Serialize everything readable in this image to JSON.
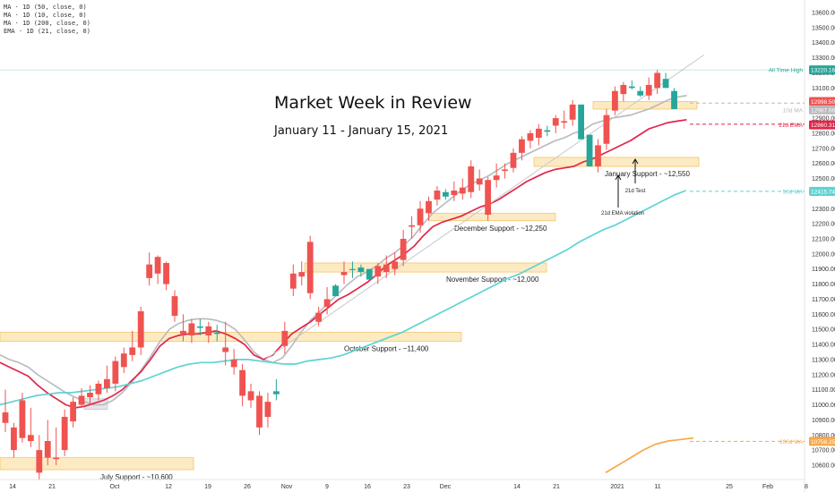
{
  "title": "Market Week in Review",
  "subtitle": "January 11 - January 15, 2021",
  "legend": [
    "MA · 1D (50, close, 0)",
    "MA · 1D (10, close, 0)",
    "MA · 1D (200, close, 0)",
    "EMA · 1D (21, close, 0)"
  ],
  "colors": {
    "up": "#26a69a",
    "down": "#ef5350",
    "ema21": "#e0264a",
    "ma10": "#b9b9bd",
    "ma50": "#5fd3d3",
    "ma200": "#f7a84a",
    "support_fill": "#fbe3ad",
    "support_stroke": "#f4c56a",
    "ath": "#26a69a"
  },
  "chart_data": {
    "type": "candlestick",
    "ylim": [
      10550,
      13650
    ],
    "y_ticks": [
      10600,
      10700,
      10800,
      10900,
      11000,
      11100,
      11200,
      11300,
      11400,
      11500,
      11600,
      11700,
      11800,
      11900,
      12000,
      12100,
      12200,
      12300,
      12400,
      12500,
      12600,
      12700,
      12800,
      12900,
      13000,
      13100,
      13200,
      13300,
      13400,
      13500,
      13600
    ],
    "x_ticks": [
      "14",
      "21",
      "Oct",
      "12",
      "19",
      "26",
      "Nov",
      "9",
      "16",
      "23",
      "Dec",
      "14",
      "21",
      "2021",
      "11",
      "25",
      "Feb",
      "8"
    ],
    "candles": [
      [
        10950,
        11100,
        10880,
        10820
      ],
      [
        10850,
        10880,
        10700,
        10650
      ],
      [
        11030,
        11080,
        10780,
        10750
      ],
      [
        10800,
        10980,
        10760,
        10720
      ],
      [
        10700,
        10800,
        10550,
        10500
      ],
      [
        10760,
        10900,
        10650,
        10600
      ],
      [
        10650,
        10850,
        10640,
        10600
      ],
      [
        10920,
        10970,
        10700,
        10660
      ],
      [
        11020,
        11050,
        10890,
        10850
      ],
      [
        11060,
        11110,
        11000,
        10980
      ],
      [
        11080,
        11130,
        11050,
        11000
      ],
      [
        11140,
        11160,
        11070,
        11030
      ],
      [
        11170,
        11260,
        11110,
        11080
      ],
      [
        11290,
        11320,
        11140,
        11090
      ],
      [
        11340,
        11380,
        11250,
        11210
      ],
      [
        11380,
        11490,
        11330,
        11290
      ],
      [
        11620,
        11650,
        11380,
        11330
      ],
      [
        11930,
        12010,
        11840,
        11790
      ],
      [
        11980,
        11990,
        11870,
        11800
      ],
      [
        11940,
        11950,
        11800,
        11760
      ],
      [
        11720,
        11760,
        11590,
        11550
      ],
      [
        11490,
        11600,
        11470,
        11420
      ],
      [
        11540,
        11570,
        11460,
        11410
      ],
      [
        11510,
        11570,
        11520,
        11460
      ],
      [
        11520,
        11550,
        11460,
        11410
      ],
      [
        11470,
        11530,
        11480,
        11420
      ],
      [
        11380,
        11550,
        11350,
        11260
      ],
      [
        11300,
        11370,
        11250,
        11200
      ],
      [
        11230,
        11270,
        11060,
        10990
      ],
      [
        11090,
        11140,
        11030,
        10980
      ],
      [
        11060,
        11090,
        10850,
        10800
      ],
      [
        11020,
        11080,
        10920,
        10850
      ],
      [
        11070,
        11170,
        11090,
        11030
      ],
      [
        11490,
        11550,
        11390,
        11340
      ],
      [
        11870,
        11930,
        11770,
        11720
      ],
      [
        11880,
        11950,
        11850,
        11790
      ],
      [
        12080,
        12120,
        11740,
        11700
      ],
      [
        11610,
        11650,
        11550,
        11520
      ],
      [
        11700,
        11780,
        11650,
        11600
      ],
      [
        11720,
        11800,
        11790,
        11750
      ],
      [
        11880,
        11950,
        11860,
        11800
      ],
      [
        11900,
        11950,
        11900,
        11840
      ],
      [
        11880,
        11930,
        11910,
        11850
      ],
      [
        11830,
        11870,
        11900,
        11850
      ],
      [
        11920,
        11940,
        11850,
        11800
      ],
      [
        11930,
        11990,
        11880,
        11840
      ],
      [
        11950,
        12010,
        11900,
        11860
      ],
      [
        12100,
        12160,
        11960,
        11920
      ],
      [
        12190,
        12250,
        12180,
        12100
      ],
      [
        12300,
        12350,
        12190,
        12140
      ],
      [
        12350,
        12380,
        12270,
        12220
      ],
      [
        12420,
        12450,
        12360,
        12320
      ],
      [
        12380,
        12430,
        12410,
        12360
      ],
      [
        12420,
        12480,
        12390,
        12350
      ],
      [
        12440,
        12500,
        12400,
        12360
      ],
      [
        12580,
        12620,
        12410,
        12370
      ],
      [
        12500,
        12560,
        12460,
        12420
      ],
      [
        12490,
        12510,
        12260,
        12220
      ],
      [
        12520,
        12600,
        12490,
        12440
      ],
      [
        12560,
        12600,
        12550,
        12500
      ],
      [
        12670,
        12700,
        12570,
        12540
      ],
      [
        12760,
        12780,
        12670,
        12620
      ],
      [
        12800,
        12820,
        12750,
        12700
      ],
      [
        12830,
        12860,
        12770,
        12720
      ],
      [
        12810,
        12850,
        12820,
        12780
      ],
      [
        12900,
        12920,
        12850,
        12800
      ],
      [
        12880,
        12950,
        12870,
        12830
      ],
      [
        12990,
        13020,
        12890,
        12850
      ],
      [
        12760,
        12960,
        12990,
        12940
      ],
      [
        12580,
        12600,
        12790,
        12770
      ],
      [
        12720,
        12760,
        12580,
        12540
      ],
      [
        12920,
        12960,
        12730,
        12690
      ],
      [
        13080,
        13110,
        12950,
        12920
      ],
      [
        13120,
        13140,
        13060,
        13010
      ],
      [
        13100,
        13150,
        13110,
        13090
      ],
      [
        13050,
        13110,
        13080,
        13040
      ],
      [
        13120,
        13170,
        13050,
        13020
      ],
      [
        13200,
        13220,
        13100,
        13060
      ],
      [
        13100,
        13200,
        13160,
        13120
      ],
      [
        12960,
        13100,
        13080,
        13050
      ]
    ],
    "ema21": [
      [
        11280,
        11250,
        11220,
        11190,
        11130,
        11080,
        11040,
        11000,
        10980,
        10990,
        11010,
        11030,
        11060,
        11100,
        11160,
        11220,
        11300,
        11390,
        11440,
        11460,
        11470,
        11470,
        11480,
        11490,
        11470,
        11440,
        11400,
        11330,
        11300,
        11330,
        11400,
        11470,
        11510,
        11550,
        11600,
        11650,
        11700,
        11730,
        11770,
        11810,
        11860,
        11920,
        11960,
        12000,
        12050,
        12120,
        12180,
        12210,
        12230,
        12250,
        12280,
        12310,
        12330,
        12360,
        12400,
        12440,
        12480,
        12510,
        12540,
        12560,
        12570,
        12580,
        12610,
        12630,
        12660,
        12690,
        12720,
        12750,
        12790,
        12830,
        12850,
        12870,
        12880,
        12890
      ]
    ],
    "ma10": [
      [
        11330,
        11300,
        11280,
        11250,
        11200,
        11160,
        11120,
        11080,
        11050,
        11020,
        11000,
        11000,
        11030,
        11080,
        11150,
        11230,
        11320,
        11420,
        11500,
        11540,
        11560,
        11570,
        11570,
        11560,
        11540,
        11500,
        11430,
        11350,
        11300,
        11280,
        11310,
        11390,
        11480,
        11560,
        11620,
        11680,
        11740,
        11800,
        11850,
        11880,
        11920,
        11970,
        12010,
        12060,
        12120,
        12200,
        12270,
        12320,
        12370,
        12420,
        12460,
        12490,
        12520,
        12560,
        12600,
        12630,
        12660,
        12690,
        12720,
        12750,
        12770,
        12800,
        12820,
        12860,
        12880,
        12900,
        12910,
        12920,
        12940,
        12960,
        12990,
        13020,
        13040,
        13050
      ]
    ],
    "ma50": [
      [
        11000,
        11020,
        11040,
        11060,
        11070,
        11080,
        11080,
        11090,
        11100,
        11110,
        11120,
        11140,
        11160,
        11190,
        11220,
        11250,
        11270,
        11280,
        11280,
        11290,
        11300,
        11300,
        11290,
        11280,
        11270,
        11270,
        11290,
        11300,
        11310,
        11330,
        11360,
        11390,
        11420,
        11450,
        11480,
        11520,
        11560,
        11600,
        11640,
        11680,
        11720,
        11760,
        11800,
        11840,
        11870,
        11910,
        11950,
        11990,
        12030,
        12080,
        12120,
        12160,
        12190,
        12230,
        12270,
        12310,
        12350,
        12390,
        12420
      ]
    ],
    "ma200": [
      [
        10550,
        10600,
        10650,
        10700,
        10740,
        10760,
        10770,
        10780
      ]
    ],
    "support_zones": [
      {
        "label": "July Support - ~10,600",
        "low": 10570,
        "high": 10650
      },
      {
        "label": "October Support - ~11,400",
        "low": 11420,
        "high": 11480
      },
      {
        "label": "November Support - ~12,000",
        "low": 11880,
        "high": 11940
      },
      {
        "label": "December Support - ~12,250",
        "low": 12220,
        "high": 12270
      },
      {
        "label": "January Support - ~12,550",
        "low": 12580,
        "high": 12640
      },
      {
        "label": "",
        "low": 12960,
        "high": 13010
      }
    ],
    "annotations": [
      {
        "text": "21d EMA violation"
      },
      {
        "text": "21d Test"
      }
    ],
    "price_tags": [
      {
        "value": "13220.16",
        "label": "All Time High",
        "color": "#26a69a"
      },
      {
        "value": "12998.50",
        "label": "",
        "color": "#ef5350"
      },
      {
        "value": "12987.66",
        "label": "10d MA",
        "color": "#b9b9bd"
      },
      {
        "value": "12860.31",
        "label": "21d EMA",
        "color": "#e0264a"
      },
      {
        "value": "12415.74",
        "label": "50d MA",
        "color": "#5fd3d3"
      },
      {
        "value": "10758.25",
        "label": "200d MA",
        "color": "#f7a84a"
      }
    ]
  }
}
